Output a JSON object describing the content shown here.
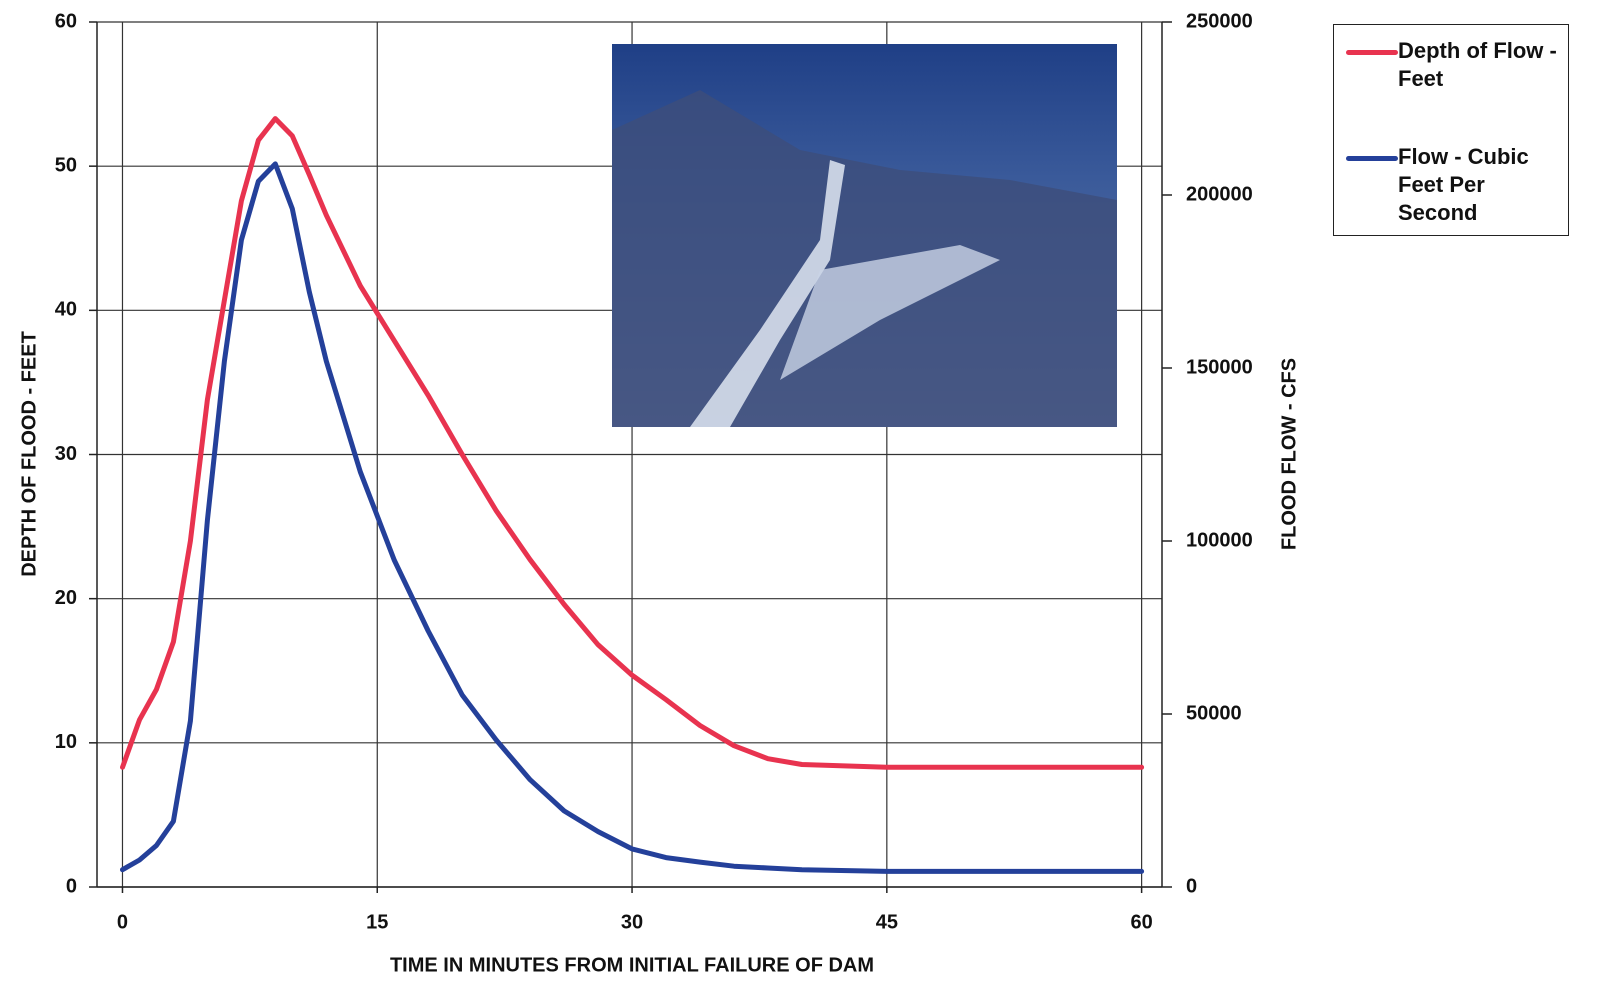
{
  "chart_data": {
    "type": "line",
    "xlabel": "TIME IN MINUTES FROM INITIAL FAILURE OF DAM",
    "ylabel": "DEPTH OF FLOOD - FEET",
    "y2label": "FLOOD FLOW - CFS",
    "x": [
      0,
      1,
      2,
      3,
      4,
      5,
      6,
      7,
      8,
      9,
      10,
      11,
      12,
      14,
      16,
      18,
      20,
      22,
      24,
      26,
      28,
      30,
      32,
      34,
      36,
      38,
      40,
      45,
      50,
      55,
      60
    ],
    "series": [
      {
        "name": "Depth of Flow - Feet",
        "color": "#e8334f",
        "values": [
          8.3,
          11.6,
          13.7,
          17,
          24,
          33.8,
          40.7,
          47.6,
          51.8,
          53.3,
          52.1,
          49.4,
          46.6,
          41.7,
          37.9,
          34.1,
          30,
          26.1,
          22.7,
          19.6,
          16.8,
          14.7,
          13,
          11.2,
          9.8,
          8.9,
          8.5,
          8.3,
          8.3,
          8.3,
          8.3
        ]
      },
      {
        "name": "Flow - Cubic Feet Per Second",
        "color": "#24409a",
        "axis": "y2",
        "values": [
          5000,
          7800,
          12000,
          19000,
          48000,
          106000,
          152000,
          187000,
          204000,
          209000,
          196000,
          172000,
          152000,
          120000,
          94500,
          74000,
          55500,
          42500,
          31000,
          22000,
          16000,
          11000,
          8500,
          7200,
          6000,
          5500,
          5000,
          4500,
          4500,
          4500,
          4500
        ]
      }
    ],
    "xlim": [
      -1.5,
      61.2
    ],
    "xticks": [
      0,
      15,
      30,
      45,
      60
    ],
    "ylim": [
      0,
      60
    ],
    "yticks": [
      0,
      10,
      20,
      30,
      40,
      50,
      60
    ],
    "y2lim": [
      0,
      250000
    ],
    "y2ticks": [
      0,
      50000,
      100000,
      150000,
      200000,
      250000
    ],
    "grid": true,
    "legend": "right"
  }
}
